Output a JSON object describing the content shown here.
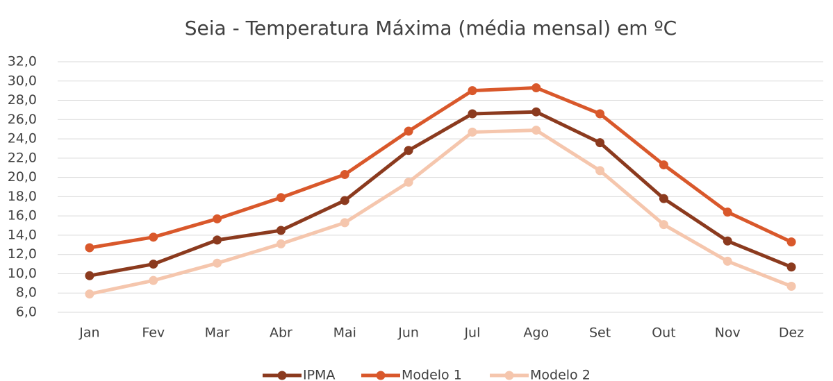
{
  "chart_data": {
    "type": "line",
    "title": "Seia - Temperatura Máxima (média mensal) em ºC",
    "categories": [
      "Jan",
      "Fev",
      "Mar",
      "Abr",
      "Mai",
      "Jun",
      "Jul",
      "Ago",
      "Set",
      "Out",
      "Nov",
      "Dez"
    ],
    "series": [
      {
        "name": "IPMA",
        "color": "#8b3a1e",
        "values": [
          9.8,
          11.0,
          13.5,
          14.5,
          17.6,
          22.8,
          26.6,
          26.8,
          23.6,
          17.8,
          13.4,
          10.7
        ]
      },
      {
        "name": "Modelo 1",
        "color": "#d9582b",
        "values": [
          12.7,
          13.8,
          15.7,
          17.9,
          20.3,
          24.8,
          29.0,
          29.3,
          26.6,
          21.3,
          16.4,
          13.3
        ]
      },
      {
        "name": "Modelo 2",
        "color": "#f5c6ad",
        "values": [
          7.9,
          9.3,
          11.1,
          13.1,
          15.3,
          19.5,
          24.7,
          24.9,
          20.7,
          15.1,
          11.3,
          8.7
        ]
      }
    ],
    "ylim": [
      6,
      32
    ],
    "yticks": [
      {
        "value": 6,
        "label": "6,0"
      },
      {
        "value": 8,
        "label": "8,0"
      },
      {
        "value": 10,
        "label": "10,0"
      },
      {
        "value": 12,
        "label": "12,0"
      },
      {
        "value": 14,
        "label": "14,0"
      },
      {
        "value": 16,
        "label": "16,0"
      },
      {
        "value": 18,
        "label": "18,0"
      },
      {
        "value": 20,
        "label": "20,0"
      },
      {
        "value": 22,
        "label": "22,0"
      },
      {
        "value": 24,
        "label": "24,0"
      },
      {
        "value": 26,
        "label": "26,0"
      },
      {
        "value": 28,
        "label": "28,0"
      },
      {
        "value": 30,
        "label": "30,0"
      },
      {
        "value": 32,
        "label": "32,0"
      }
    ],
    "grid": true,
    "legend": "bottom"
  }
}
